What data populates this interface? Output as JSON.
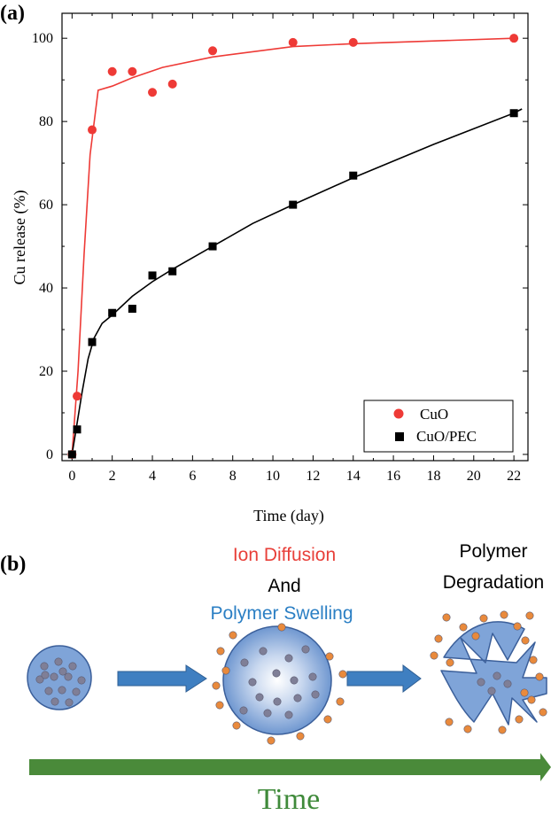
{
  "panel_a_label": "(a)",
  "panel_b_label": "(b)",
  "chart_data": {
    "type": "scatter",
    "title": "",
    "xlabel": "Time (day)",
    "ylabel": "Cu release (%)",
    "xlim": [
      -0.5,
      22.7
    ],
    "ylim": [
      -1.5,
      106
    ],
    "x_ticks": [
      0,
      2,
      4,
      6,
      8,
      10,
      12,
      14,
      16,
      18,
      20,
      22
    ],
    "y_ticks": [
      0,
      20,
      40,
      60,
      80,
      100
    ],
    "legend_position": "bottom-right",
    "grid": false,
    "series": [
      {
        "name": "CuO",
        "marker": "circle",
        "color": "#ee3a36",
        "points": [
          [
            0,
            0
          ],
          [
            0.25,
            14
          ],
          [
            1,
            78
          ],
          [
            2,
            92
          ],
          [
            3,
            92
          ],
          [
            4,
            87
          ],
          [
            5,
            89
          ],
          [
            7,
            97
          ],
          [
            11,
            99
          ],
          [
            14,
            99
          ],
          [
            22,
            100
          ]
        ],
        "fit_curve": [
          [
            0,
            0
          ],
          [
            0.3,
            20
          ],
          [
            0.6,
            48
          ],
          [
            0.9,
            72
          ],
          [
            1.3,
            87.5
          ],
          [
            2,
            88.5
          ],
          [
            3,
            90.5
          ],
          [
            4.5,
            93
          ],
          [
            7,
            95.5
          ],
          [
            11,
            98
          ],
          [
            14,
            98.7
          ],
          [
            22,
            100
          ]
        ]
      },
      {
        "name": "CuO/PEC",
        "marker": "square",
        "color": "#000000",
        "points": [
          [
            0,
            0
          ],
          [
            0.25,
            6
          ],
          [
            1,
            27
          ],
          [
            2,
            34
          ],
          [
            3,
            35
          ],
          [
            4,
            43
          ],
          [
            5,
            44
          ],
          [
            7,
            50
          ],
          [
            11,
            60
          ],
          [
            14,
            67
          ],
          [
            22,
            82
          ]
        ],
        "fit_curve": [
          [
            0,
            0
          ],
          [
            0.2,
            6
          ],
          [
            0.5,
            15
          ],
          [
            0.8,
            23
          ],
          [
            1.1,
            28
          ],
          [
            1.5,
            31.5
          ],
          [
            2,
            33.5
          ],
          [
            3,
            38
          ],
          [
            4,
            41.5
          ],
          [
            5,
            44.5
          ],
          [
            7,
            50
          ],
          [
            9,
            55.5
          ],
          [
            11,
            60
          ],
          [
            14,
            66.5
          ],
          [
            18,
            74.5
          ],
          [
            22,
            82
          ],
          [
            22.4,
            83
          ]
        ]
      }
    ]
  },
  "schematic": {
    "ion_diffusion": "Ion Diffusion",
    "and": "And",
    "polymer_swelling": "Polymer Swelling",
    "polymer_line1": "Polymer",
    "polymer_line2": "Degradation",
    "time_label": "Time",
    "colors": {
      "ion_diffusion": "#e8403a",
      "polymer_swelling": "#2b7fc4",
      "sphere": "#7fa4d8",
      "arrow": "#3f7fc1",
      "time_arrow": "#4a8a3a",
      "time_text": "#3f8a3a",
      "orange_dot": "#e98a3c",
      "grey_dot": "#7f7f97"
    }
  }
}
